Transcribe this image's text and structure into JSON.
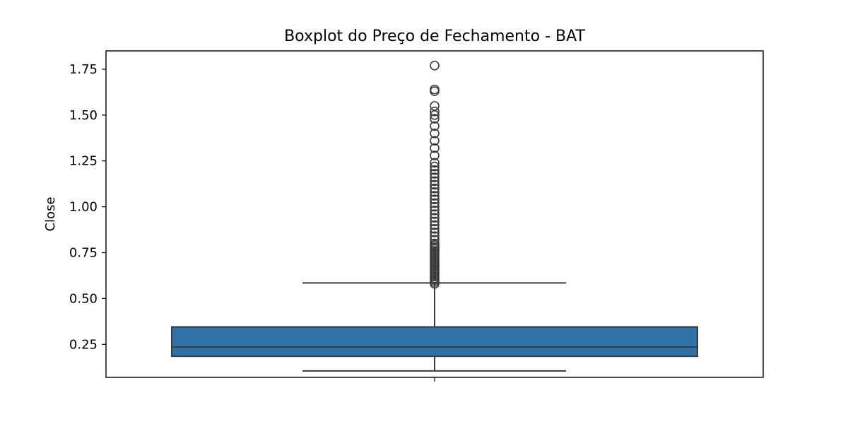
{
  "chart_data": {
    "type": "box",
    "title": "Boxplot do Preço de Fechamento - BAT",
    "xlabel": "",
    "ylabel": "Close",
    "ylim": [
      0.07,
      1.85
    ],
    "yticks": [
      0.25,
      0.5,
      0.75,
      1.0,
      1.25,
      1.5,
      1.75
    ],
    "ytick_labels": [
      "0.25",
      "0.50",
      "0.75",
      "1.00",
      "1.25",
      "1.50",
      "1.75"
    ],
    "box": {
      "min": 0.105,
      "q1": 0.185,
      "median": 0.235,
      "q3": 0.345,
      "whisker_high": 0.585
    },
    "outliers": [
      0.58,
      0.59,
      0.6,
      0.61,
      0.62,
      0.63,
      0.64,
      0.65,
      0.66,
      0.67,
      0.68,
      0.69,
      0.7,
      0.71,
      0.72,
      0.73,
      0.74,
      0.75,
      0.76,
      0.77,
      0.78,
      0.79,
      0.8,
      0.82,
      0.84,
      0.86,
      0.88,
      0.9,
      0.92,
      0.94,
      0.96,
      0.98,
      1.0,
      1.02,
      1.04,
      1.06,
      1.08,
      1.1,
      1.12,
      1.14,
      1.16,
      1.18,
      1.2,
      1.22,
      1.24,
      1.28,
      1.32,
      1.36,
      1.4,
      1.44,
      1.48,
      1.5,
      1.52,
      1.55,
      1.63,
      1.64,
      1.77
    ],
    "colors": {
      "box_fill": "#2f72a8",
      "line": "#3a3a3a",
      "frame": "#000000"
    }
  }
}
